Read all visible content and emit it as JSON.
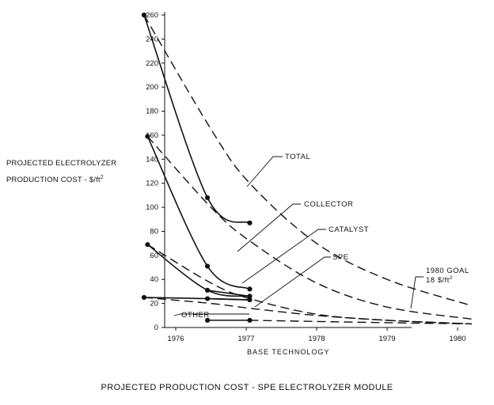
{
  "chart_data": {
    "type": "line",
    "caption": "PROJECTED PRODUCTION COST - SPE ELECTROLYZER MODULE",
    "ylabel_line1": "PROJECTED ELECTROLYZER",
    "ylabel_line2": "PRODUCTION COST - $/ft",
    "ylabel_exp": "2",
    "xlabel": "BASE TECHNOLOGY",
    "x_ticks": [
      "1976",
      "1977",
      "1978",
      "1979",
      "1980"
    ],
    "y_ticks": [
      0,
      20,
      40,
      60,
      80,
      100,
      120,
      140,
      160,
      180,
      200,
      220,
      240,
      260
    ],
    "ylim": [
      0,
      260
    ],
    "series": [
      {
        "name": "TOTAL",
        "kind": "actual",
        "points": [
          [
            1975.55,
            260
          ],
          [
            1976.45,
            108
          ],
          [
            1977.05,
            87
          ]
        ]
      },
      {
        "name": "TOTAL",
        "kind": "projected",
        "points": [
          [
            1975.55,
            260
          ],
          [
            1976.5,
            165
          ],
          [
            1977.05,
            120
          ],
          [
            1978,
            70
          ],
          [
            1979,
            40
          ],
          [
            1980.15,
            19
          ]
        ]
      },
      {
        "name": "COLLECTOR",
        "kind": "actual",
        "points": [
          [
            1975.6,
            159
          ],
          [
            1976.45,
            51
          ],
          [
            1977.05,
            32
          ]
        ]
      },
      {
        "name": "COLLECTOR",
        "kind": "projected",
        "points": [
          [
            1975.6,
            159
          ],
          [
            1976.5,
            100
          ],
          [
            1977.05,
            72
          ],
          [
            1978,
            37
          ],
          [
            1979,
            17
          ],
          [
            1980.2,
            7
          ]
        ]
      },
      {
        "name": "CATALYST",
        "kind": "actual",
        "points": [
          [
            1975.6,
            69
          ],
          [
            1976.45,
            31
          ],
          [
            1977.05,
            26
          ]
        ]
      },
      {
        "name": "CATALYST",
        "kind": "projected",
        "points": [
          [
            1975.6,
            69
          ],
          [
            1976.5,
            37
          ],
          [
            1977.05,
            24
          ],
          [
            1978,
            11
          ],
          [
            1979,
            6
          ],
          [
            1980.2,
            3
          ]
        ]
      },
      {
        "name": "SPE",
        "kind": "actual",
        "points": [
          [
            1975.55,
            25
          ],
          [
            1976.45,
            24
          ],
          [
            1977.05,
            23
          ]
        ]
      },
      {
        "name": "SPE",
        "kind": "projected",
        "points": [
          [
            1975.55,
            25
          ],
          [
            1976.5,
            20
          ],
          [
            1977.05,
            16
          ],
          [
            1978,
            10
          ],
          [
            1979,
            6
          ],
          [
            1980.2,
            3
          ]
        ]
      },
      {
        "name": "OTHER",
        "kind": "actual",
        "points": [
          [
            1976.45,
            6
          ],
          [
            1977.05,
            6
          ]
        ]
      },
      {
        "name": "OTHER",
        "kind": "projected",
        "points": [
          [
            1977.05,
            6
          ],
          [
            1978,
            5
          ],
          [
            1979,
            4
          ],
          [
            1980.2,
            3
          ]
        ]
      }
    ],
    "labels": {
      "total": "TOTAL",
      "collector": "COLLECTOR",
      "catalyst": "CATALYST",
      "spe": "SPE",
      "other": "OTHER",
      "goal_line1": "1980 GOAL",
      "goal_line2": "18 $/ft",
      "goal_exp": "2"
    },
    "goal_value": 18
  }
}
